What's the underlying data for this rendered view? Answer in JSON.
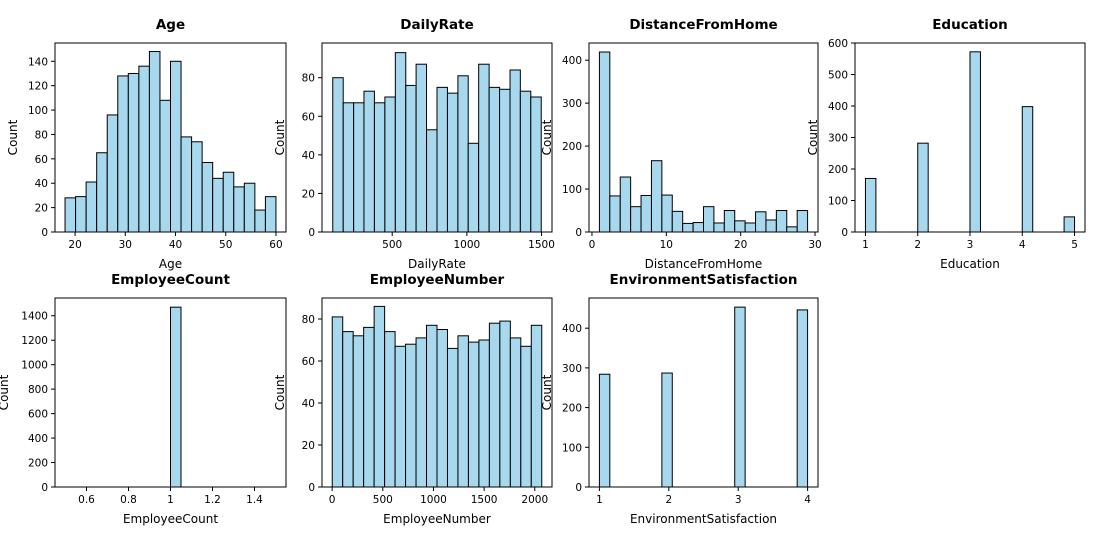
{
  "colors": {
    "bar_fill": "#a7d8ee",
    "bar_edge": "#000000",
    "background": "#ffffff"
  },
  "chart_data": [
    {
      "type": "bar",
      "title": "Age",
      "xlabel": "Age",
      "ylabel": "Count",
      "xlim": [
        16,
        62
      ],
      "ylim": [
        0,
        155
      ],
      "xticks": [
        20,
        30,
        40,
        50,
        60
      ],
      "yticks": [
        0,
        20,
        40,
        60,
        80,
        100,
        120,
        140
      ],
      "bin_edges": [
        18,
        20.1,
        22.2,
        24.3,
        26.4,
        28.5,
        30.6,
        32.7,
        34.8,
        36.9,
        39,
        41.1,
        43.2,
        45.3,
        47.4,
        49.5,
        51.6,
        53.7,
        55.8,
        57.9,
        60
      ],
      "values": [
        28,
        29,
        41,
        65,
        96,
        128,
        130,
        136,
        148,
        108,
        140,
        78,
        74,
        57,
        44,
        49,
        37,
        40,
        18,
        29
      ]
    },
    {
      "type": "bar",
      "title": "DailyRate",
      "xlabel": "DailyRate",
      "ylabel": "Count",
      "xlim": [
        30,
        1570
      ],
      "ylim": [
        0,
        98
      ],
      "xticks": [
        500,
        1000,
        1500
      ],
      "yticks": [
        0,
        20,
        40,
        60,
        80
      ],
      "bin_edges": [
        102,
        172,
        242,
        311,
        381,
        451,
        521,
        591,
        660,
        730,
        800,
        870,
        940,
        1009,
        1079,
        1149,
        1219,
        1289,
        1358,
        1428,
        1498
      ],
      "values": [
        80,
        67,
        67,
        73,
        67,
        70,
        93,
        76,
        87,
        53,
        75,
        72,
        81,
        46,
        87,
        75,
        74,
        84,
        73,
        70
      ]
    },
    {
      "type": "bar",
      "title": "DistanceFromHome",
      "xlabel": "DistanceFromHome",
      "ylabel": "Count",
      "xlim": [
        -0.4,
        30.4
      ],
      "ylim": [
        0,
        440
      ],
      "xticks": [
        0,
        10,
        20,
        30
      ],
      "yticks": [
        0,
        100,
        200,
        300,
        400
      ],
      "bin_edges": [
        1,
        2.4,
        3.8,
        5.2,
        6.6,
        8,
        9.4,
        10.8,
        12.2,
        13.6,
        15,
        16.4,
        17.8,
        19.2,
        20.6,
        22,
        23.4,
        24.8,
        26.2,
        27.6,
        29
      ],
      "values": [
        419,
        84,
        128,
        59,
        85,
        166,
        86,
        48,
        20,
        22,
        59,
        21,
        50,
        26,
        21,
        47,
        28,
        50,
        12,
        50
      ]
    },
    {
      "type": "bar",
      "title": "Education",
      "xlabel": "Education",
      "ylabel": "Count",
      "xlim": [
        0.8,
        5.2
      ],
      "ylim": [
        0,
        600
      ],
      "xticks": [
        1,
        2,
        3,
        4,
        5
      ],
      "yticks": [
        0,
        100,
        200,
        300,
        400,
        500,
        600
      ],
      "bin_edges": [
        1,
        1.2,
        1.4,
        1.6,
        1.8,
        2,
        2.2,
        2.4,
        2.6,
        2.8,
        3,
        3.2,
        3.4,
        3.6,
        3.8,
        4,
        4.2,
        4.4,
        4.6,
        4.8,
        5
      ],
      "values": [
        170,
        0,
        0,
        0,
        0,
        282,
        0,
        0,
        0,
        0,
        572,
        0,
        0,
        0,
        0,
        398,
        0,
        0,
        0,
        48
      ]
    },
    {
      "type": "bar",
      "title": "EmployeeCount",
      "xlabel": "EmployeeCount",
      "ylabel": "Count",
      "xlim": [
        0.45,
        1.55
      ],
      "ylim": [
        0,
        1545
      ],
      "xticks": [
        0.6,
        0.8,
        1.0,
        1.2,
        1.4
      ],
      "yticks": [
        0,
        200,
        400,
        600,
        800,
        1000,
        1200,
        1400
      ],
      "bin_edges": [
        0.5,
        0.55,
        0.6,
        0.65,
        0.7,
        0.75,
        0.8,
        0.85,
        0.9,
        0.95,
        1.0,
        1.05,
        1.1,
        1.15,
        1.2,
        1.25,
        1.3,
        1.35,
        1.4,
        1.45,
        1.5
      ],
      "values": [
        0,
        0,
        0,
        0,
        0,
        0,
        0,
        0,
        0,
        0,
        1470,
        0,
        0,
        0,
        0,
        0,
        0,
        0,
        0,
        0
      ]
    },
    {
      "type": "bar",
      "title": "EmployeeNumber",
      "xlabel": "EmployeeNumber",
      "ylabel": "Count",
      "xlim": [
        -100,
        2170
      ],
      "ylim": [
        0,
        90
      ],
      "xticks": [
        0,
        500,
        1000,
        1500,
        2000
      ],
      "yticks": [
        0,
        20,
        40,
        60,
        80
      ],
      "bin_edges": [
        1,
        104.4,
        207.8,
        311.2,
        414.6,
        518,
        621.4,
        724.8,
        828.2,
        931.6,
        1035,
        1138.4,
        1241.8,
        1345.2,
        1448.6,
        1552,
        1655.4,
        1758.8,
        1862.2,
        1965.6,
        2069
      ],
      "values": [
        81,
        74,
        72,
        76,
        86,
        74,
        67,
        68,
        71,
        77,
        75,
        66,
        72,
        69,
        70,
        78,
        79,
        71,
        67,
        77
      ]
    },
    {
      "type": "bar",
      "title": "EnvironmentSatisfaction",
      "xlabel": "EnvironmentSatisfaction",
      "ylabel": "Count",
      "xlim": [
        0.85,
        4.15
      ],
      "ylim": [
        0,
        476
      ],
      "xticks": [
        1,
        2,
        3,
        4
      ],
      "yticks": [
        0,
        100,
        200,
        300,
        400
      ],
      "bin_edges": [
        1,
        1.15,
        1.3,
        1.45,
        1.6,
        1.75,
        1.9,
        2.05,
        2.2,
        2.35,
        2.5,
        2.65,
        2.8,
        2.95,
        3.1,
        3.25,
        3.4,
        3.55,
        3.7,
        3.85,
        4
      ],
      "values": [
        284,
        0,
        0,
        0,
        0,
        0,
        287,
        0,
        0,
        0,
        0,
        0,
        0,
        453,
        0,
        0,
        0,
        0,
        0,
        446
      ]
    }
  ]
}
